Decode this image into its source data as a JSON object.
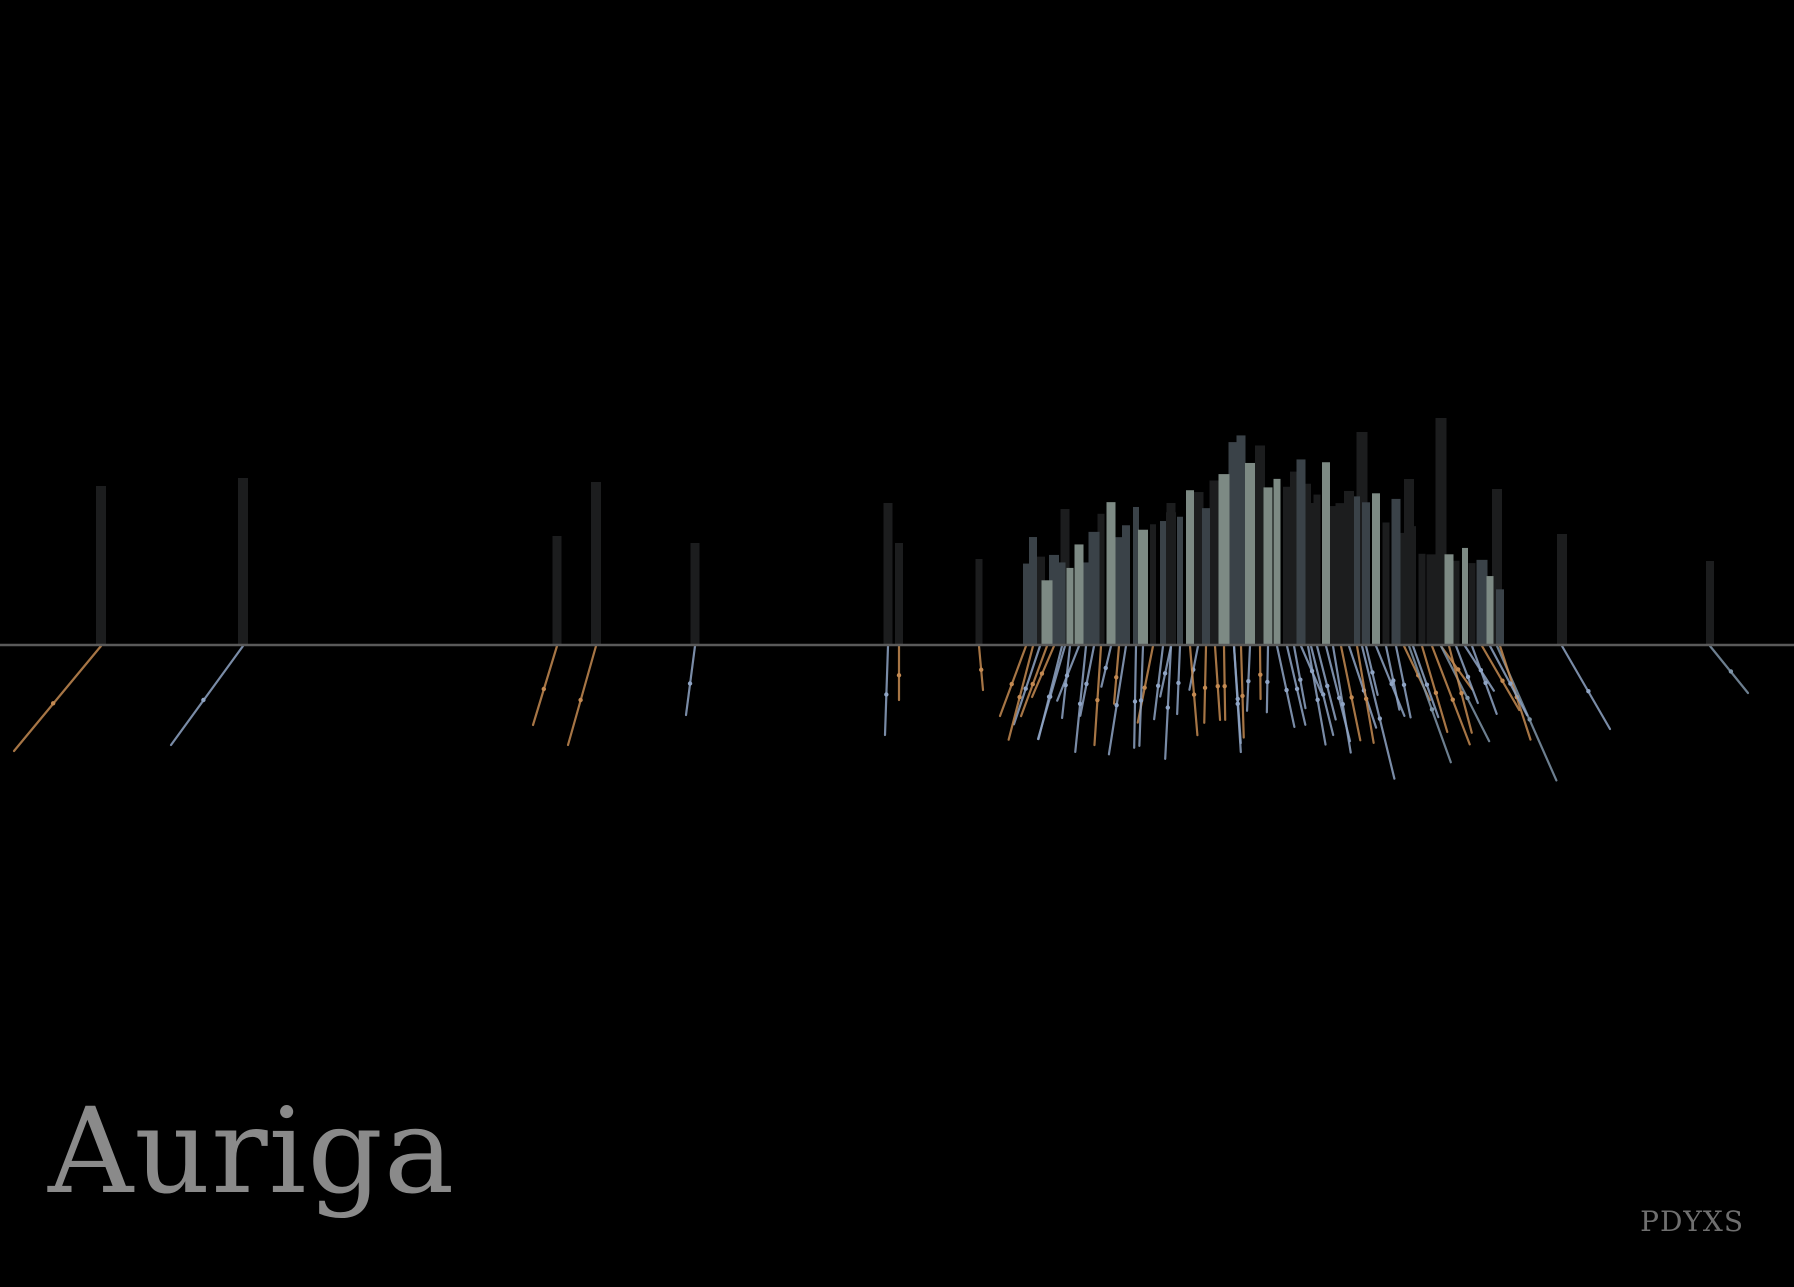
{
  "title": "Auriga",
  "signature": "PDYXS",
  "colors": {
    "background": "#000000",
    "horizon": "#5a5a5a",
    "title": "#8a8a8a",
    "signature": "#6f6f6f",
    "bar_dark": "#1c1d1e",
    "bar_mid": "#3a4248",
    "bar_light": "#7d8a84",
    "shadow_orange": "#c48a52",
    "shadow_blue": "#8fa4c4",
    "shadow_steel": "#7f95a8"
  }
}
